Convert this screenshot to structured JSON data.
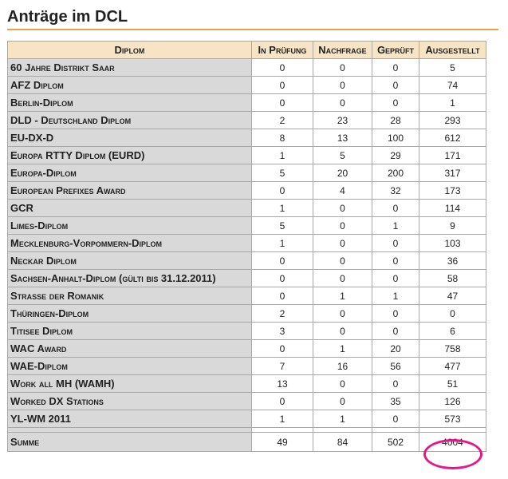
{
  "title": "Anträge im DCL",
  "accent_color": "#e8a24a",
  "highlight_color": "#e6168b",
  "table": {
    "headers": [
      "Diplom",
      "In Prüfung",
      "Nachfrage",
      "Geprüft",
      "Ausgestellt"
    ],
    "rows": [
      {
        "name": "60 Jahre Distrikt Saar",
        "in_pruefung": "0",
        "nachfrage": "0",
        "geprueft": "0",
        "ausgestellt": "5"
      },
      {
        "name": "AFZ Diplom",
        "in_pruefung": "0",
        "nachfrage": "0",
        "geprueft": "0",
        "ausgestellt": "74"
      },
      {
        "name": "Berlin-Diplom",
        "in_pruefung": "0",
        "nachfrage": "0",
        "geprueft": "0",
        "ausgestellt": "1"
      },
      {
        "name": "DLD - Deutschland Diplom",
        "in_pruefung": "2",
        "nachfrage": "23",
        "geprueft": "28",
        "ausgestellt": "293"
      },
      {
        "name": "EU-DX-D",
        "in_pruefung": "8",
        "nachfrage": "13",
        "geprueft": "100",
        "ausgestellt": "612"
      },
      {
        "name": "Europa RTTY Diplom (EURD)",
        "in_pruefung": "1",
        "nachfrage": "5",
        "geprueft": "29",
        "ausgestellt": "171"
      },
      {
        "name": "Europa-Diplom",
        "in_pruefung": "5",
        "nachfrage": "20",
        "geprueft": "200",
        "ausgestellt": "317"
      },
      {
        "name": "European Prefixes Award",
        "in_pruefung": "0",
        "nachfrage": "4",
        "geprueft": "32",
        "ausgestellt": "173"
      },
      {
        "name": "GCR",
        "in_pruefung": "1",
        "nachfrage": "0",
        "geprueft": "0",
        "ausgestellt": "114"
      },
      {
        "name": "Limes-Diplom",
        "in_pruefung": "5",
        "nachfrage": "0",
        "geprueft": "1",
        "ausgestellt": "9"
      },
      {
        "name": "Mecklenburg-Vorpommern-Diplom",
        "in_pruefung": "1",
        "nachfrage": "0",
        "geprueft": "0",
        "ausgestellt": "103"
      },
      {
        "name": "Neckar Diplom",
        "in_pruefung": "0",
        "nachfrage": "0",
        "geprueft": "0",
        "ausgestellt": "36"
      },
      {
        "name": "Sachsen-Anhalt-Diplom (gülti bis 31.12.2011)",
        "in_pruefung": "0",
        "nachfrage": "0",
        "geprueft": "0",
        "ausgestellt": "58"
      },
      {
        "name": "Strasse der Romanik",
        "in_pruefung": "0",
        "nachfrage": "1",
        "geprueft": "1",
        "ausgestellt": "47"
      },
      {
        "name": "Thüringen-Diplom",
        "in_pruefung": "2",
        "nachfrage": "0",
        "geprueft": "0",
        "ausgestellt": "0"
      },
      {
        "name": "Titisee Diplom",
        "in_pruefung": "3",
        "nachfrage": "0",
        "geprueft": "0",
        "ausgestellt": "6"
      },
      {
        "name": "WAC Award",
        "in_pruefung": "0",
        "nachfrage": "1",
        "geprueft": "20",
        "ausgestellt": "758"
      },
      {
        "name": "WAE-Diplom",
        "in_pruefung": "7",
        "nachfrage": "16",
        "geprueft": "56",
        "ausgestellt": "477"
      },
      {
        "name": "Work all MH (WAMH)",
        "in_pruefung": "13",
        "nachfrage": "0",
        "geprueft": "0",
        "ausgestellt": "51"
      },
      {
        "name": "Worked DX Stations",
        "in_pruefung": "0",
        "nachfrage": "0",
        "geprueft": "35",
        "ausgestellt": "126"
      },
      {
        "name": "YL-WM 2011",
        "in_pruefung": "1",
        "nachfrage": "1",
        "geprueft": "0",
        "ausgestellt": "573"
      }
    ],
    "summary": {
      "name": "Summe",
      "in_pruefung": "49",
      "nachfrage": "84",
      "geprueft": "502",
      "ausgestellt": "4004"
    }
  }
}
